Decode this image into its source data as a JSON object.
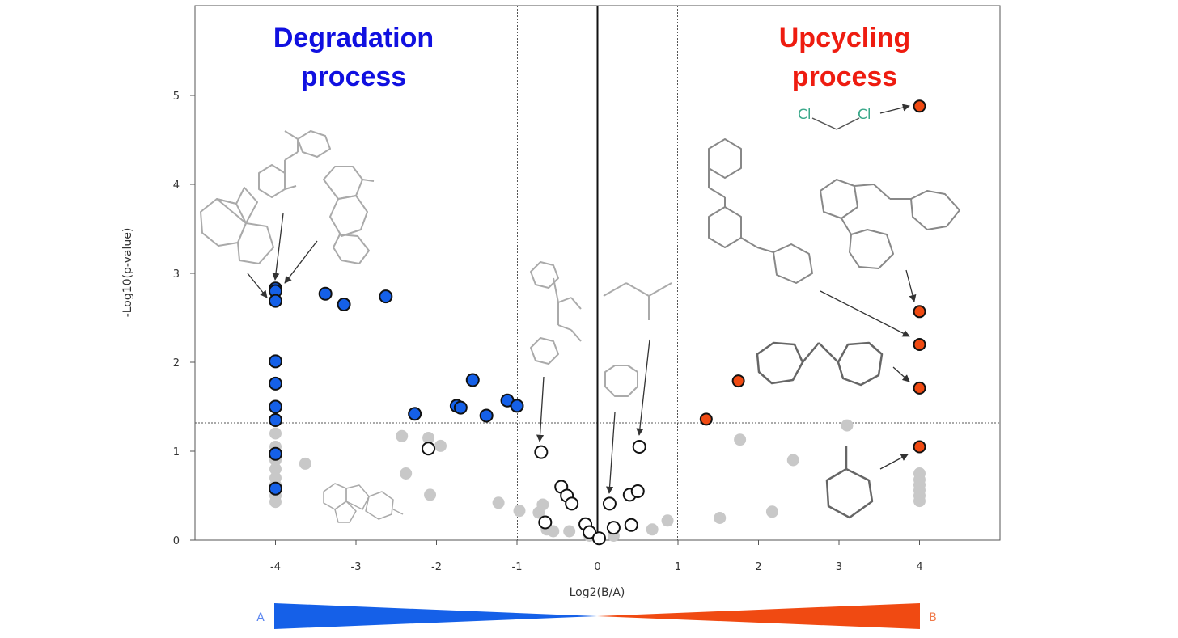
{
  "chart_data": {
    "type": "scatter",
    "title": "",
    "xlabel": "Log2(B/A)",
    "ylabel": "-Log10(p-value)",
    "xlim": [
      -5,
      5
    ],
    "ylim": [
      0,
      6
    ],
    "x_ticks": [
      -4,
      -3,
      -2,
      -1,
      0,
      1,
      2,
      3,
      4
    ],
    "y_ticks": [
      0,
      1,
      2,
      3,
      4,
      5
    ],
    "fold_change_thresholds": [
      -1,
      1
    ],
    "significance_threshold": 1.3,
    "grid": false,
    "annotations": {
      "left_region": [
        "Degradation",
        "process"
      ],
      "right_region": [
        "Upcycling",
        "process"
      ],
      "gradient_left": "A",
      "gradient_right": "B",
      "cl_label": "Cl"
    },
    "colors": {
      "degradation": "#1560e8",
      "upcycling": "#f04a12",
      "not_significant": "#c8c8c8",
      "near_zero": "#ffffff",
      "degradation_text": "#1010e0",
      "upcycling_text": "#ee1c10",
      "gradient_left_text": "#5b86f0",
      "gradient_right_text": "#f07a4a"
    },
    "series": [
      {
        "category": "degradation",
        "points": [
          [
            -4,
            2.83
          ],
          [
            -4,
            2.8
          ],
          [
            -4,
            2.69
          ],
          [
            -4,
            2.01
          ],
          [
            -4,
            1.76
          ],
          [
            -4,
            1.5
          ],
          [
            -4,
            1.35
          ],
          [
            -4,
            0.97
          ],
          [
            -4,
            0.58
          ],
          [
            -3.38,
            2.77
          ],
          [
            -3.15,
            2.65
          ],
          [
            -2.63,
            2.74
          ],
          [
            -2.27,
            1.42
          ],
          [
            -1.75,
            1.51
          ],
          [
            -1.7,
            1.49
          ],
          [
            -1.55,
            1.8
          ],
          [
            -1.38,
            1.4
          ],
          [
            -1.12,
            1.57
          ],
          [
            -1.0,
            1.51
          ]
        ]
      },
      {
        "category": "upcycling",
        "points": [
          [
            4,
            4.88
          ],
          [
            4,
            2.57
          ],
          [
            4,
            2.2
          ],
          [
            4,
            1.71
          ],
          [
            4,
            1.05
          ],
          [
            1.75,
            1.79
          ],
          [
            1.35,
            1.36
          ]
        ]
      },
      {
        "category": "near_zero",
        "points": [
          [
            -2.1,
            1.03
          ],
          [
            -0.7,
            0.99
          ],
          [
            -0.65,
            0.2
          ],
          [
            -0.45,
            0.6
          ],
          [
            -0.38,
            0.5
          ],
          [
            -0.32,
            0.41
          ],
          [
            -0.15,
            0.18
          ],
          [
            -0.1,
            0.09
          ],
          [
            0.02,
            0.02
          ],
          [
            0.15,
            0.41
          ],
          [
            0.2,
            0.14
          ],
          [
            0.4,
            0.51
          ],
          [
            0.42,
            0.17
          ],
          [
            0.5,
            0.55
          ],
          [
            0.52,
            1.05
          ]
        ]
      },
      {
        "category": "not_significant",
        "points": [
          [
            -4,
            1.2
          ],
          [
            -4,
            1.05
          ],
          [
            -4,
            0.9
          ],
          [
            -4,
            0.8
          ],
          [
            -4,
            0.7
          ],
          [
            -4,
            0.62
          ],
          [
            -4,
            0.5
          ],
          [
            -4,
            0.43
          ],
          [
            -3.63,
            0.86
          ],
          [
            -2.43,
            1.17
          ],
          [
            -2.38,
            0.75
          ],
          [
            -2.1,
            1.15
          ],
          [
            -2.08,
            0.51
          ],
          [
            -1.95,
            1.06
          ],
          [
            -1.23,
            0.42
          ],
          [
            -0.97,
            0.33
          ],
          [
            -0.73,
            0.31
          ],
          [
            -0.68,
            0.4
          ],
          [
            -0.63,
            0.12
          ],
          [
            -0.55,
            0.1
          ],
          [
            -0.35,
            0.1
          ],
          [
            -0.1,
            0.05
          ],
          [
            0.2,
            0.05
          ],
          [
            0.68,
            0.12
          ],
          [
            0.87,
            0.22
          ],
          [
            1.52,
            0.25
          ],
          [
            1.77,
            1.13
          ],
          [
            2.17,
            0.32
          ],
          [
            2.43,
            0.9
          ],
          [
            3.1,
            1.29
          ],
          [
            4,
            0.75
          ],
          [
            4,
            0.68
          ],
          [
            4,
            0.62
          ],
          [
            4,
            0.56
          ],
          [
            4,
            0.5
          ],
          [
            4,
            0.44
          ]
        ]
      }
    ]
  }
}
